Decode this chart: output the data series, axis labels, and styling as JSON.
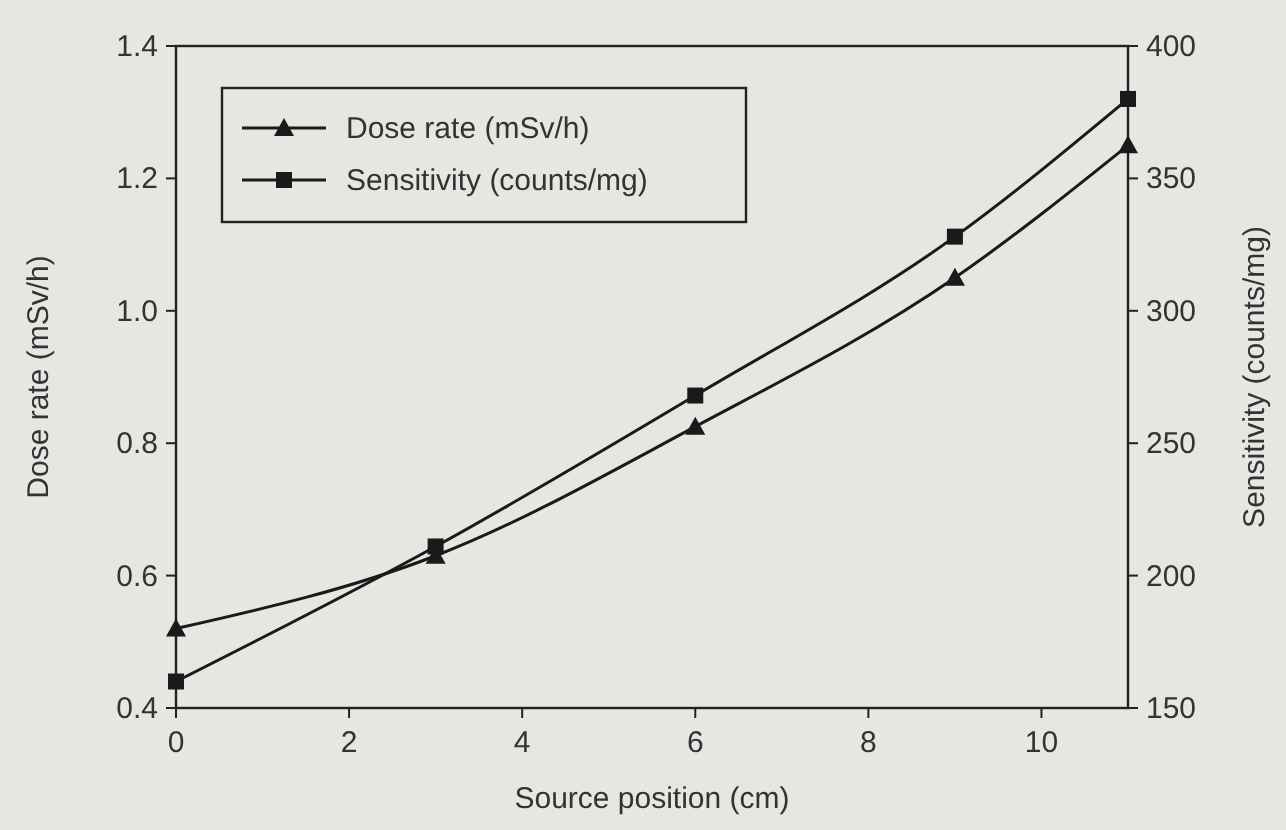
{
  "chart_data": {
    "type": "line",
    "xlabel": "Source position (cm)",
    "ylabel": "Dose rate (mSv/h)",
    "y2label": "Sensitivity (counts/mg)",
    "x": [
      0,
      3,
      6,
      9,
      11
    ],
    "xlim": [
      0,
      11
    ],
    "xticks": [
      0,
      2,
      4,
      6,
      8,
      10
    ],
    "ylim": [
      0.4,
      1.4
    ],
    "yticks": [
      {
        "value": 0.4,
        "label": "0.4"
      },
      {
        "value": 0.6,
        "label": "0.6"
      },
      {
        "value": 0.8,
        "label": "0.8"
      },
      {
        "value": 1.0,
        "label": "1.0"
      },
      {
        "value": 1.2,
        "label": "1.2"
      },
      {
        "value": 1.4,
        "label": "1.4"
      }
    ],
    "y2lim": [
      150,
      400
    ],
    "y2ticks": [
      150,
      200,
      250,
      300,
      350,
      400
    ],
    "legend": "top left",
    "grid": false,
    "series": [
      {
        "name": "Dose rate (mSv/h)",
        "color": "#1a1a1a",
        "marker": "triangle",
        "values": [
          0.52,
          0.63,
          0.825,
          1.05,
          1.25
        ]
      },
      {
        "name": "Sensitivity (counts/mg)",
        "color": "#1a1a1a",
        "marker": "square",
        "axis": "y2",
        "values": [
          160,
          211,
          268,
          328,
          380
        ]
      }
    ]
  }
}
